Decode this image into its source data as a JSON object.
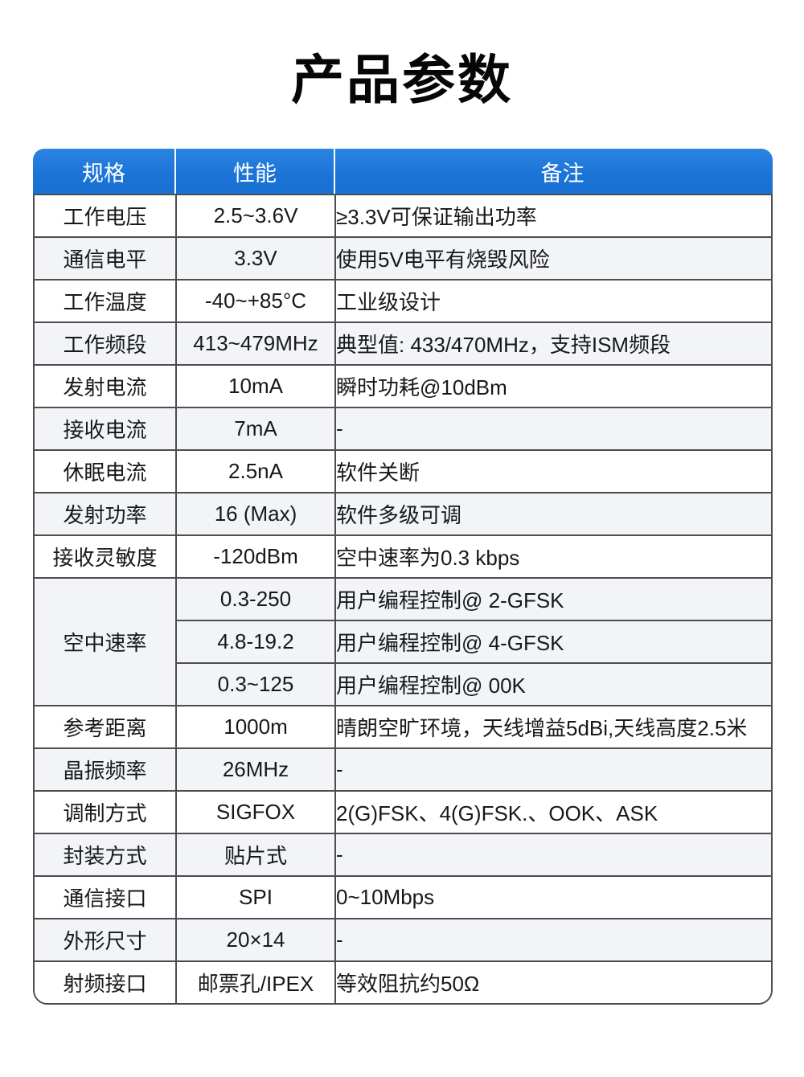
{
  "page": {
    "title": "产品参数"
  },
  "colors": {
    "header_bg": "#1B73D6",
    "header_text": "#FFFFFF",
    "row_alt_bg": "#F2F4F8",
    "border": "#4D4D4D",
    "text": "#17181A",
    "accent_red": "#D42C2C"
  },
  "table": {
    "headers": [
      {
        "label": "规格"
      },
      {
        "label": "性能"
      },
      {
        "label": "备注"
      }
    ],
    "rows": [
      {
        "spec": "工作电压",
        "value": "2.5~3.6V",
        "remark": "≥3.3V可保证输出功率"
      },
      {
        "spec": "通信电平",
        "value": "3.3V",
        "remark": "使用5V电平有烧毁风险"
      },
      {
        "spec": "工作温度",
        "value": "-40~+85°C",
        "remark": "工业级设计"
      },
      {
        "spec": "工作频段",
        "value": "413~479MHz",
        "remark": "典型值: 433/470MHz，支持ISM频段"
      },
      {
        "spec": "发射电流",
        "value": "10mA",
        "remark": "瞬时功耗@10dBm"
      },
      {
        "spec": "接收电流",
        "value": "7mA",
        "remark": "-"
      },
      {
        "spec": "休眠电流",
        "value": "2.5nA",
        "remark": "软件关断"
      },
      {
        "spec": "发射功率",
        "value": "16 (Max)",
        "value_red": true,
        "remark": "软件多级可调"
      },
      {
        "spec": "接收灵敏度",
        "value": "-120dBm",
        "remark": "空中速率为0.3 kbps"
      },
      {
        "spec": "空中速率",
        "spec_rowspan": 3,
        "value": "0.3-250",
        "remark": "用户编程控制@ 2-GFSK"
      },
      {
        "merged": true,
        "value": "4.8-19.2",
        "remark": "用户编程控制@ 4-GFSK"
      },
      {
        "merged": true,
        "value": "0.3~125",
        "remark": "用户编程控制@ 00K"
      },
      {
        "spec": "参考距离",
        "value": "1000m",
        "value_red": true,
        "remark": "晴朗空旷环境，天线增益5dBi,天线高度2.5米"
      },
      {
        "spec": "晶振频率",
        "value": "26MHz",
        "remark": "-"
      },
      {
        "spec": "调制方式",
        "value": "SIGFOX",
        "remark": "2(G)FSK、4(G)FSK.、OOK、ASK"
      },
      {
        "spec": "封装方式",
        "value": "贴片式",
        "remark": "-"
      },
      {
        "spec": "通信接口",
        "value": "SPI",
        "remark": "0~10Mbps"
      },
      {
        "spec": "外形尺寸",
        "value": "20×14",
        "remark": "-"
      },
      {
        "spec": "射频接口",
        "value": "邮票孔/IPEX",
        "remark": "等效阻抗约50Ω"
      }
    ]
  }
}
